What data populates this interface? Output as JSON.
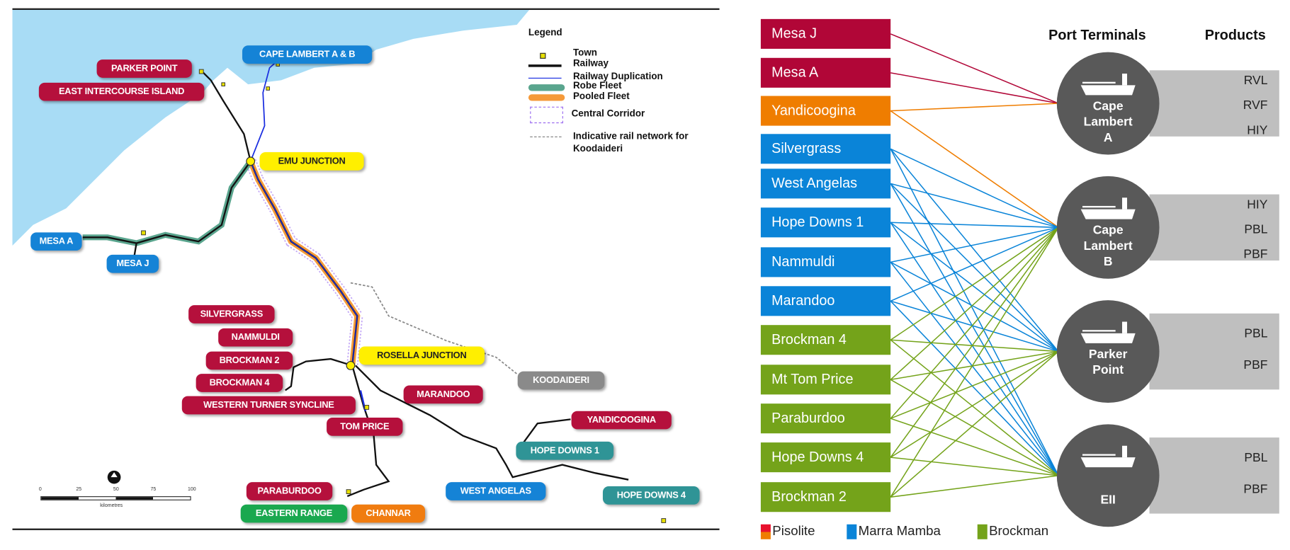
{
  "map": {
    "legend": {
      "title": "Legend",
      "items": [
        "Town",
        "Railway",
        "Railway Duplication",
        "Robe Fleet",
        "Pooled Fleet",
        "Central Corridor",
        "Indicative rail network for Koodaideri"
      ]
    },
    "labels": [
      {
        "text": "CAPE LAMBERT A & B",
        "type": "marra"
      },
      {
        "text": "PARKER POINT",
        "type": "pisolite"
      },
      {
        "text": "EAST INTERCOURSE ISLAND",
        "type": "pisolite"
      },
      {
        "text": "EMU JUNCTION",
        "type": "junction"
      },
      {
        "text": "MESA A",
        "type": "marra"
      },
      {
        "text": "MESA J",
        "type": "marra"
      },
      {
        "text": "SILVERGRASS",
        "type": "pisolite"
      },
      {
        "text": "NAMMULDI",
        "type": "pisolite"
      },
      {
        "text": "BROCKMAN 2",
        "type": "pisolite"
      },
      {
        "text": "ROSELLA JUNCTION",
        "type": "junction"
      },
      {
        "text": "BROCKMAN 4",
        "type": "pisolite"
      },
      {
        "text": "KOODAIDERI",
        "type": "grey"
      },
      {
        "text": "MARANDOO",
        "type": "pisolite"
      },
      {
        "text": "WESTERN TURNER SYNCLINE",
        "type": "pisolite"
      },
      {
        "text": "TOM PRICE",
        "type": "pisolite"
      },
      {
        "text": "YANDICOOGINA",
        "type": "pisolite"
      },
      {
        "text": "HOPE DOWNS 1",
        "type": "teal"
      },
      {
        "text": "WEST ANGELAS",
        "type": "marra"
      },
      {
        "text": "HOPE DOWNS 4",
        "type": "teal"
      },
      {
        "text": "PARABURDOO",
        "type": "pisolite"
      },
      {
        "text": "EASTERN RANGE",
        "type": "green"
      },
      {
        "text": "CHANNAR",
        "type": "orange"
      }
    ],
    "scale": {
      "ticks": [
        "0",
        "25",
        "50",
        "75",
        "100"
      ],
      "unit": "kilometres"
    },
    "label_colors": {
      "pisolite": "#b5103c",
      "marra": "#1583d6",
      "junction": "#ffef00",
      "grey": "#8a8a8a",
      "teal": "#2f9496",
      "green": "#1aa84f",
      "orange": "#f07c10"
    }
  },
  "flow": {
    "headers": {
      "terminals": "Port Terminals",
      "products": "Products"
    },
    "mines": [
      {
        "name": "Mesa J",
        "type": "Pisolite",
        "to": [
          0
        ]
      },
      {
        "name": "Mesa A",
        "type": "Pisolite",
        "to": [
          0
        ]
      },
      {
        "name": "Yandicoogina",
        "type": "PisoliteOrange",
        "to": [
          0,
          1
        ]
      },
      {
        "name": "Silvergrass",
        "type": "Marra Mamba",
        "to": [
          1,
          2,
          3
        ]
      },
      {
        "name": "West Angelas",
        "type": "Marra Mamba",
        "to": [
          1,
          2,
          3
        ]
      },
      {
        "name": "Hope Downs 1",
        "type": "Marra Mamba",
        "to": [
          1,
          2,
          3
        ]
      },
      {
        "name": "Nammuldi",
        "type": "Marra Mamba",
        "to": [
          1,
          2,
          3
        ]
      },
      {
        "name": "Marandoo",
        "type": "Marra Mamba",
        "to": [
          1,
          2,
          3
        ]
      },
      {
        "name": "Brockman 4",
        "type": "Brockman",
        "to": [
          1,
          2,
          3
        ]
      },
      {
        "name": "Mt Tom Price",
        "type": "Brockman",
        "to": [
          1,
          2,
          3
        ]
      },
      {
        "name": "Paraburdoo",
        "type": "Brockman",
        "to": [
          1,
          2,
          3
        ]
      },
      {
        "name": "Hope Downs 4",
        "type": "Brockman",
        "to": [
          1,
          2,
          3
        ]
      },
      {
        "name": "Brockman 2",
        "type": "Brockman",
        "to": [
          1,
          2,
          3
        ]
      }
    ],
    "terminals": [
      {
        "name": [
          "Cape",
          "Lambert",
          "A"
        ],
        "products": [
          "RVL",
          "RVF",
          "HIY"
        ]
      },
      {
        "name": [
          "Cape",
          "Lambert",
          "B"
        ],
        "products": [
          "HIY",
          "PBL",
          "PBF"
        ]
      },
      {
        "name": [
          "Parker",
          "Point"
        ],
        "products": [
          "PBL",
          "PBF"
        ]
      },
      {
        "name": [
          "EII"
        ],
        "products": [
          "PBL",
          "PBF"
        ]
      }
    ],
    "colors": {
      "Pisolite": "#b10637",
      "PisoliteOrange": "#ef7d00",
      "Marra Mamba": "#0a84d8",
      "Brockman": "#74a31a"
    },
    "legend": [
      "Pisolite",
      "Marra Mamba",
      "Brockman"
    ]
  }
}
